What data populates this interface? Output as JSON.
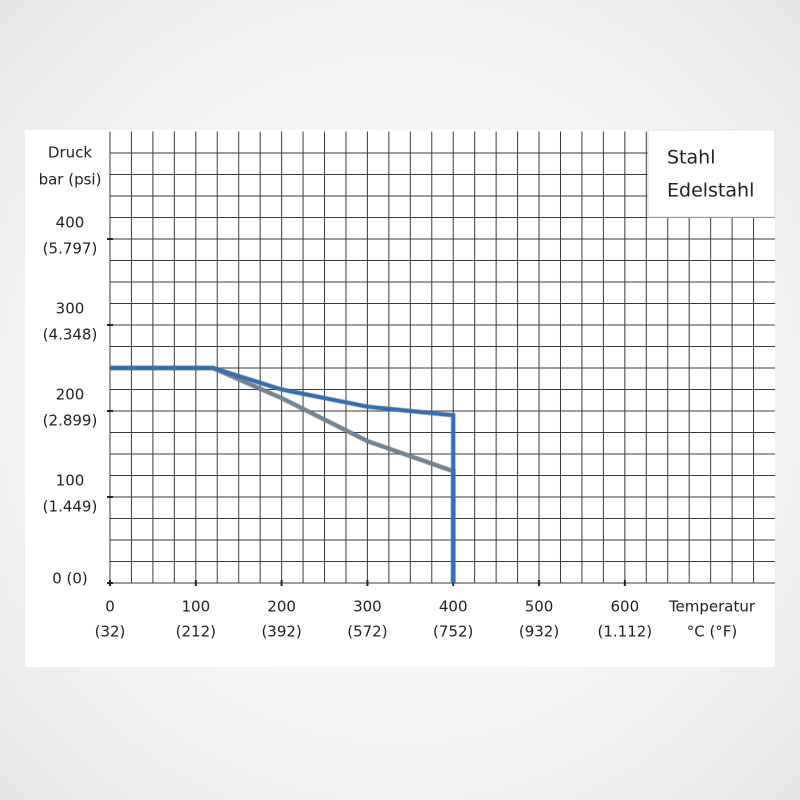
{
  "chart_data": {
    "type": "line",
    "y_title": [
      "Druck",
      "bar (psi)"
    ],
    "x_title": [
      "Temperatur",
      "°C (°F)"
    ],
    "xlim": [
      0,
      775
    ],
    "ylim": [
      0,
      525
    ],
    "xticks": [
      {
        "value": 0,
        "label": "0",
        "sublabel": "(32)"
      },
      {
        "value": 100,
        "label": "100",
        "sublabel": "(212)"
      },
      {
        "value": 200,
        "label": "200",
        "sublabel": "(392)"
      },
      {
        "value": 300,
        "label": "300",
        "sublabel": "(572)"
      },
      {
        "value": 400,
        "label": "400",
        "sublabel": "(752)"
      },
      {
        "value": 500,
        "label": "500",
        "sublabel": "(932)"
      },
      {
        "value": 600,
        "label": "600",
        "sublabel": "(1.112)"
      }
    ],
    "yticks": [
      {
        "value": 0,
        "label": "0 (0)"
      },
      {
        "value": 100,
        "label": "100",
        "sublabel": "(1.449)"
      },
      {
        "value": 200,
        "label": "200",
        "sublabel": "(2.899)"
      },
      {
        "value": 300,
        "label": "300",
        "sublabel": "(4.348)"
      },
      {
        "value": 400,
        "label": "400",
        "sublabel": "(5.797)"
      }
    ],
    "xgrid": [
      25,
      50,
      75,
      100,
      125,
      150,
      175,
      200,
      225,
      250,
      275,
      300,
      325,
      350,
      375,
      400,
      425,
      450,
      475,
      500,
      525,
      550,
      575,
      600,
      625,
      650,
      675,
      700,
      725,
      750
    ],
    "ygrid": [
      25,
      50,
      75,
      100,
      125,
      150,
      175,
      200,
      225,
      250,
      275,
      300,
      325,
      350,
      375,
      400,
      425,
      450,
      475,
      500
    ],
    "grid": true,
    "legend_position": "top-right",
    "series": [
      {
        "name": "Stahl",
        "color": "#6f8494",
        "x": [
          0,
          120,
          200,
          300,
          400,
          400
        ],
        "values": [
          250,
          250,
          215,
          165,
          130,
          0
        ]
      },
      {
        "name": "Edelstahl",
        "color": "#2e6fba",
        "x": [
          0,
          120,
          200,
          300,
          400,
          400
        ],
        "values": [
          250,
          250,
          225,
          205,
          195,
          0
        ]
      }
    ]
  }
}
